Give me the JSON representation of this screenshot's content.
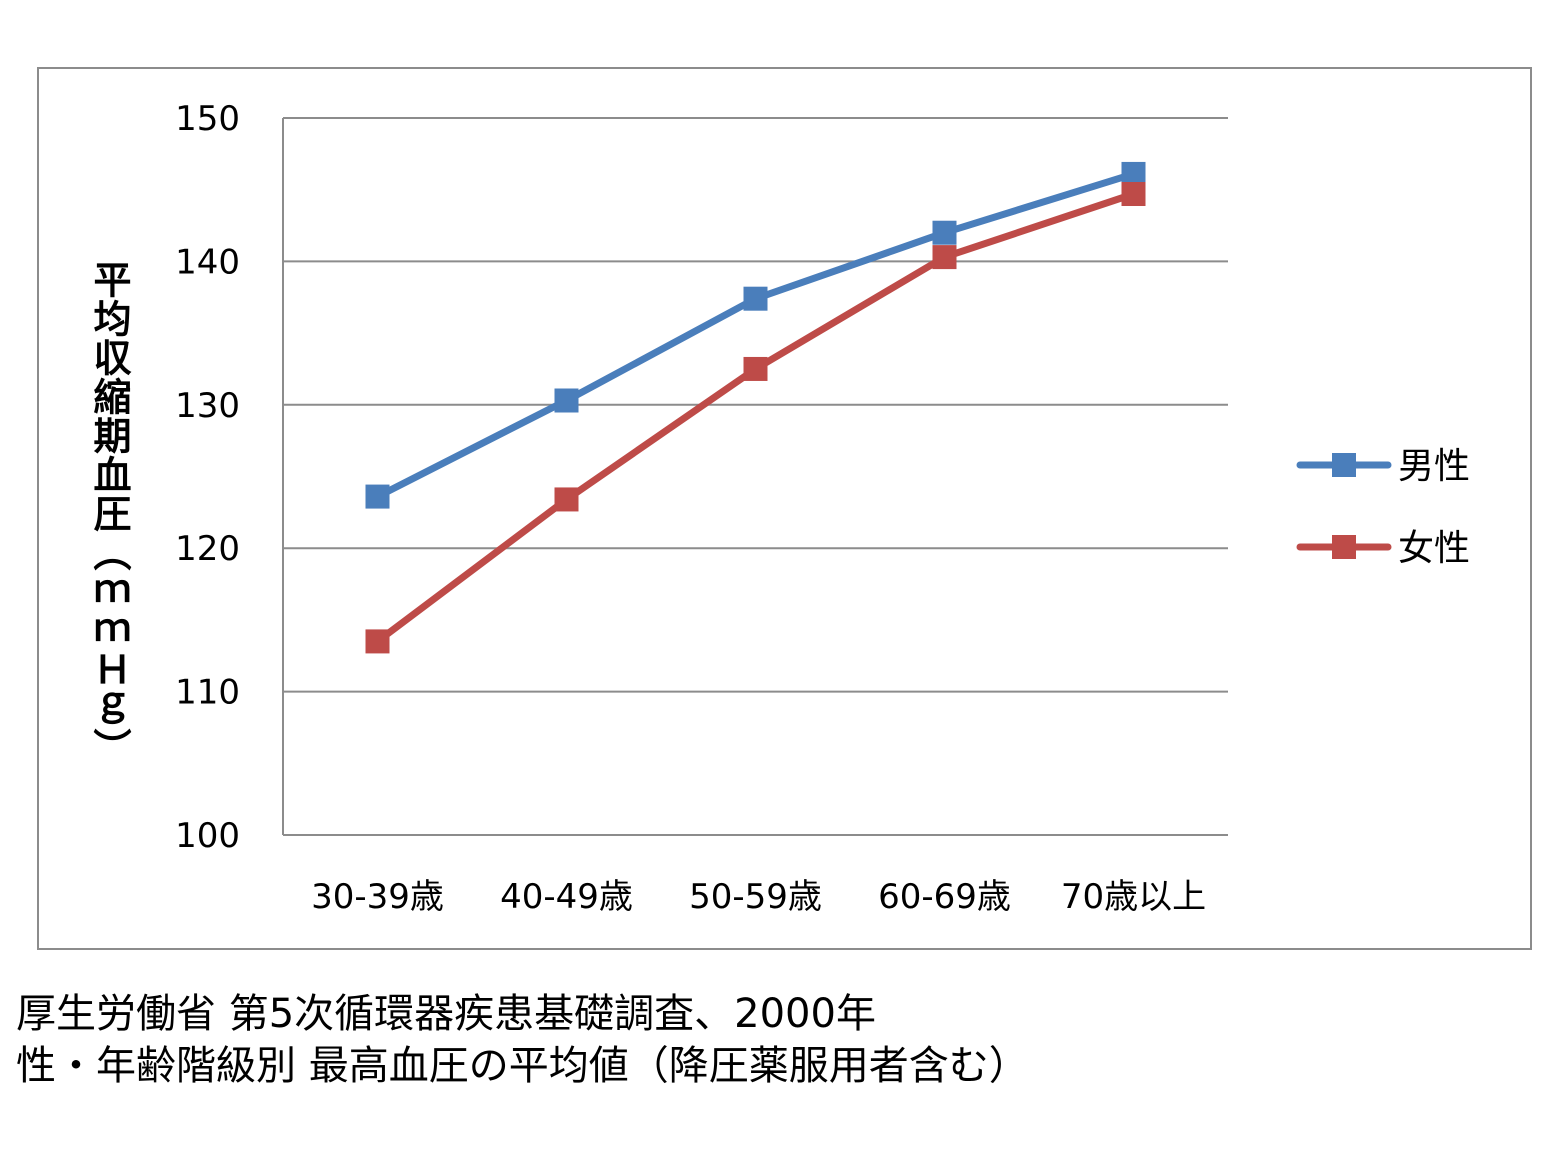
{
  "chart_data": {
    "type": "line",
    "categories": [
      "30-39歳",
      "40-49歳",
      "50-59歳",
      "60-69歳",
      "70歳以上"
    ],
    "series": [
      {
        "name": "男性",
        "color": "#4a7ebb",
        "values": [
          123.6,
          130.3,
          137.4,
          142.0,
          146.1
        ]
      },
      {
        "name": "女性",
        "color": "#be4b48",
        "values": [
          113.5,
          123.4,
          132.5,
          140.3,
          144.7
        ]
      }
    ],
    "ylabel": "平均収縮期血圧（ｍｍＨｇ）",
    "ylim": [
      100,
      150
    ],
    "yticks": [
      100,
      110,
      120,
      130,
      140,
      150
    ],
    "grid": true,
    "legend": "right",
    "marker": "square"
  },
  "caption": {
    "line1": "厚生労働省 第5次循環器疾患基礎調査、2000年",
    "line2": "性・年齢階級別 最高血圧の平均値（降圧薬服用者含む）"
  }
}
